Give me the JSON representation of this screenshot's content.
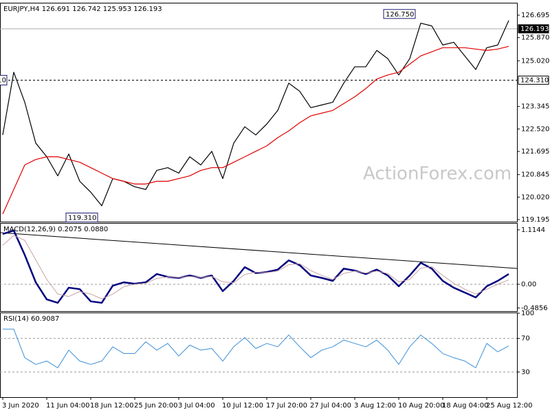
{
  "chart_data": [
    {
      "type": "line",
      "title": "EURJPY,H4  126.691 126.742 125.953 126.193",
      "watermark": "ActionForex.com",
      "ylim": [
        119.12,
        127.124
      ],
      "yticks": [
        126.695,
        {
          "value": 125.87,
          "label": "125.870"
        },
        {
          "value": 125.02,
          "label": "125.020"
        },
        123.345,
        {
          "value": 122.52,
          "label": "122.520"
        },
        121.695,
        120.845,
        {
          "value": 120.02,
          "label": "120.020"
        },
        119.195
      ],
      "hlines": [
        {
          "value": 126.193,
          "label": "126.193",
          "style": "solid"
        },
        {
          "value": 124.31,
          "label": "124.310",
          "style": "dashed"
        }
      ],
      "annotations": [
        {
          "text": "126.750",
          "value": 126.75
        },
        {
          "text": "119.310",
          "value": 119.31
        }
      ],
      "series": [
        {
          "color": "#000000",
          "values": [
            122.3,
            124.6,
            123.5,
            122.0,
            121.5,
            120.8,
            121.6,
            120.6,
            120.2,
            119.7,
            120.7,
            120.6,
            120.4,
            120.3,
            121.0,
            121.1,
            120.9,
            121.5,
            121.2,
            121.7,
            120.7,
            122.0,
            122.6,
            122.3,
            122.7,
            123.2,
            124.2,
            123.9,
            123.3,
            123.4,
            123.5,
            124.2,
            124.8,
            124.8,
            125.4,
            125.1,
            124.5,
            125.1,
            126.4,
            126.3,
            125.6,
            125.7,
            125.2,
            124.7,
            125.5,
            125.6,
            126.5
          ]
        },
        {
          "color": "#e00000",
          "values": [
            119.4,
            120.3,
            121.2,
            121.4,
            121.5,
            121.5,
            121.4,
            121.3,
            121.1,
            120.9,
            120.7,
            120.6,
            120.5,
            120.5,
            120.6,
            120.6,
            120.7,
            120.8,
            121.0,
            121.1,
            121.1,
            121.3,
            121.5,
            121.7,
            121.9,
            122.2,
            122.45,
            122.75,
            123.0,
            123.1,
            123.2,
            123.45,
            123.7,
            124.0,
            124.35,
            124.5,
            124.6,
            124.9,
            125.2,
            125.35,
            125.5,
            125.5,
            125.5,
            125.45,
            125.4,
            125.45,
            125.55
          ]
        }
      ]
    },
    {
      "type": "line",
      "title": "MACD(12,26,9) 0.2075 0.0880",
      "ylim": [
        -0.55,
        1.24
      ],
      "yticks": [
        1.1144,
        {
          "value": 0,
          "label": "0.00"
        },
        -0.4856
      ],
      "levels": [
        0
      ],
      "trendline": [
        1.056,
        0.324
      ],
      "series": [
        {
          "color": "#00007f",
          "width": 2.5,
          "values": [
            1.03,
            1.1,
            0.6,
            0.04,
            -0.31,
            -0.38,
            -0.07,
            -0.1,
            -0.35,
            -0.38,
            -0.03,
            0.04,
            0.01,
            0.04,
            0.21,
            0.15,
            0.13,
            0.18,
            0.13,
            0.18,
            -0.14,
            0.07,
            0.35,
            0.23,
            0.25,
            0.3,
            0.49,
            0.39,
            0.18,
            0.13,
            0.07,
            0.32,
            0.28,
            0.21,
            0.3,
            0.18,
            -0.04,
            0.18,
            0.44,
            0.32,
            0.07,
            -0.07,
            -0.17,
            -0.27,
            -0.04,
            0.07,
            0.21
          ]
        },
        {
          "color": "#c9a3a3",
          "width": 1,
          "values": [
            0.8,
            1.0,
            0.9,
            0.5,
            0.1,
            -0.2,
            -0.25,
            -0.15,
            -0.2,
            -0.3,
            -0.2,
            -0.05,
            0.0,
            0.02,
            0.12,
            0.15,
            0.14,
            0.16,
            0.14,
            0.16,
            0.05,
            0.03,
            0.2,
            0.25,
            0.24,
            0.27,
            0.4,
            0.42,
            0.28,
            0.18,
            0.1,
            0.22,
            0.27,
            0.23,
            0.27,
            0.22,
            0.05,
            0.1,
            0.33,
            0.36,
            0.18,
            0.02,
            -0.1,
            -0.2,
            -0.1,
            0.0,
            0.09
          ]
        }
      ]
    },
    {
      "type": "line",
      "title": "RSI(14) 60.9087",
      "ylim": [
        0,
        100
      ],
      "yticks": [
        100,
        70,
        30
      ],
      "levels": [
        70,
        30
      ],
      "categories": [
        "3 Jun 2020",
        null,
        null,
        null,
        "11 Jun 04:00",
        null,
        null,
        null,
        "18 Jun 12:00",
        null,
        null,
        null,
        "25 Jun 20:00",
        null,
        null,
        null,
        "3 Jul 04:00",
        null,
        null,
        null,
        "10 Jul 12:00",
        null,
        null,
        null,
        "17 Jul 20:00",
        null,
        null,
        null,
        "27 Jul 04:00",
        null,
        null,
        null,
        "3 Aug 12:00",
        null,
        null,
        null,
        "10 Aug 20:00",
        null,
        null,
        null,
        "18 Aug 04:00",
        null,
        null,
        null,
        "25 Aug 12:00",
        null,
        null
      ],
      "series": [
        {
          "color": "#3c8fd8",
          "width": 1,
          "values": [
            81,
            81,
            47,
            39,
            43,
            35,
            56,
            43,
            39,
            43,
            60,
            52,
            52,
            66,
            56,
            64,
            49,
            62,
            56,
            58,
            43,
            60,
            71,
            58,
            64,
            60,
            74,
            60,
            47,
            56,
            60,
            68,
            64,
            60,
            68,
            56,
            39,
            60,
            74,
            64,
            52,
            47,
            43,
            35,
            64,
            54,
            61
          ]
        }
      ]
    }
  ]
}
